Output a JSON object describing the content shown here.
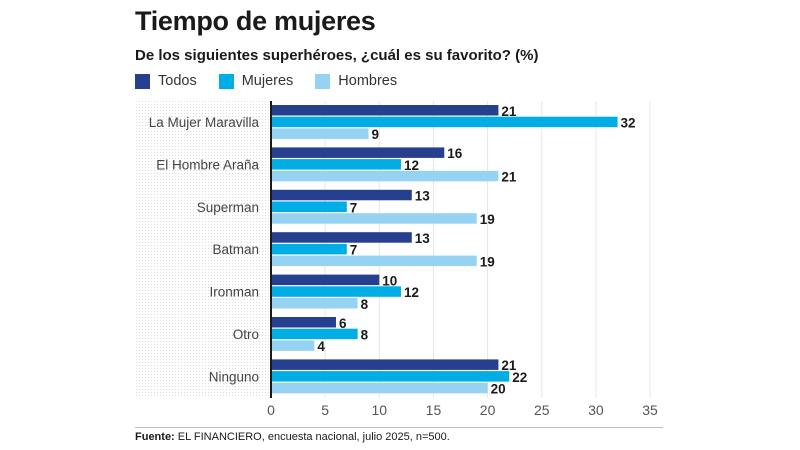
{
  "title": "Tiempo de mujeres",
  "subtitle": "De los siguientes superhéroes, ¿cuál es su favorito? (%)",
  "legend": [
    {
      "name": "Todos",
      "color": "#263f8f"
    },
    {
      "name": "Mujeres",
      "color": "#00aee5"
    },
    {
      "name": "Hombres",
      "color": "#96d3f2"
    }
  ],
  "footer": {
    "source_label": "Fuente:",
    "source_text": " EL FINANCIERO, encuesta nacional, julio 2025, n=500."
  },
  "chart_data": {
    "type": "bar",
    "orientation": "horizontal",
    "title": "Tiempo de mujeres",
    "subtitle": "De los siguientes superhéroes, ¿cuál es su favorito? (%)",
    "xlabel": "",
    "ylabel": "",
    "xlim": [
      0,
      35
    ],
    "xticks": [
      0,
      5,
      10,
      15,
      20,
      25,
      30,
      35
    ],
    "grid": "vertical",
    "legend_position": "top-left",
    "categories": [
      "La Mujer Maravilla",
      "El Hombre Araña",
      "Superman",
      "Batman",
      "Ironman",
      "Otro",
      "Ninguno"
    ],
    "series": [
      {
        "name": "Todos",
        "color": "#263f8f",
        "values": [
          21,
          16,
          13,
          13,
          10,
          6,
          21
        ]
      },
      {
        "name": "Mujeres",
        "color": "#00aee5",
        "values": [
          32,
          12,
          7,
          7,
          12,
          8,
          22
        ]
      },
      {
        "name": "Hombres",
        "color": "#96d3f2",
        "values": [
          9,
          21,
          19,
          19,
          8,
          4,
          20
        ]
      }
    ]
  }
}
